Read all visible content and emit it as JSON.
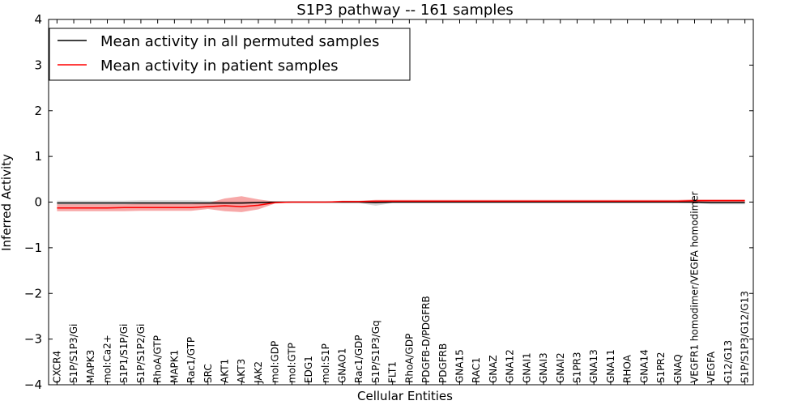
{
  "chart_data": {
    "type": "line",
    "title": "S1P3 pathway -- 161 samples",
    "xlabel": "Cellular Entities",
    "ylabel": "Inferred Activity",
    "ylim": [
      -4,
      4
    ],
    "yticks": [
      "−4",
      "−3",
      "−2",
      "−1",
      "0",
      "1",
      "2",
      "3",
      "4"
    ],
    "yticks_values": [
      -4,
      -3,
      -2,
      -1,
      0,
      1,
      2,
      3,
      4
    ],
    "legend_position": "top-left",
    "categories": [
      "CXCR4",
      "S1P/S1P3/Gi",
      "MAPK3",
      "mol:Ca2+",
      "S1P1/S1P/Gi",
      "S1P/S1P2/Gi",
      "RhoA/GTP",
      "MAPK1",
      "Rac1/GTP",
      "SRC",
      "AKT1",
      "AKT3",
      "JAK2",
      "mol:GDP",
      "mol:GTP",
      "EDG1",
      "mol:S1P",
      "GNAO1",
      "Rac1/GDP",
      "S1P/S1P3/Gq",
      "FLT1",
      "RhoA/GDP",
      "PDGFB-D/PDGFRB",
      "PDGFRB",
      "GNA15",
      "RAC1",
      "GNAZ",
      "GNA12",
      "GNAI1",
      "GNAI3",
      "GNAI2",
      "S1PR3",
      "GNA13",
      "GNA11",
      "RHOA",
      "GNA14",
      "S1PR2",
      "GNAQ",
      "VEGFR1 homodimer/VEGFA homodimer",
      "VEGFA",
      "G12/G13",
      "S1P/S1P3/G12/G13"
    ],
    "series": [
      {
        "name": "Mean activity in all permuted samples",
        "color": "#000000",
        "values": [
          -0.02,
          -0.02,
          -0.02,
          -0.02,
          -0.02,
          -0.02,
          -0.02,
          -0.02,
          -0.02,
          -0.02,
          -0.02,
          -0.02,
          -0.01,
          0,
          0,
          0,
          0,
          0,
          0,
          -0.01,
          0,
          0,
          0,
          0,
          0,
          0,
          0,
          0,
          0,
          0,
          0,
          0,
          0,
          0,
          0,
          0,
          0,
          0,
          0,
          -0.01,
          -0.01,
          -0.01
        ],
        "band_lower": [
          -0.06,
          -0.06,
          -0.06,
          -0.06,
          -0.06,
          -0.06,
          -0.06,
          -0.06,
          -0.06,
          -0.06,
          -0.05,
          -0.05,
          -0.03,
          -0.01,
          -0.01,
          -0.01,
          -0.01,
          -0.02,
          -0.02,
          -0.08,
          -0.02,
          -0.02,
          -0.02,
          -0.02,
          -0.02,
          -0.02,
          -0.02,
          -0.02,
          -0.02,
          -0.02,
          -0.02,
          -0.02,
          -0.02,
          -0.02,
          -0.02,
          -0.02,
          -0.02,
          -0.02,
          -0.03,
          -0.05,
          -0.05,
          -0.05
        ],
        "band_upper": [
          0.03,
          0.03,
          0.03,
          0.03,
          0.03,
          0.04,
          0.04,
          0.04,
          0.04,
          0.03,
          0.02,
          0.02,
          0.01,
          0.01,
          0.01,
          0.01,
          0.01,
          0.02,
          0.02,
          0.03,
          0.02,
          0.02,
          0.02,
          0.02,
          0.02,
          0.02,
          0.02,
          0.02,
          0.02,
          0.02,
          0.02,
          0.02,
          0.02,
          0.02,
          0.02,
          0.02,
          0.02,
          0.02,
          0.03,
          0.03,
          0.03,
          0.03
        ]
      },
      {
        "name": "Mean activity in patient samples",
        "color": "#ff0000",
        "values": [
          -0.13,
          -0.13,
          -0.13,
          -0.13,
          -0.12,
          -0.12,
          -0.12,
          -0.12,
          -0.12,
          -0.1,
          -0.08,
          -0.1,
          -0.07,
          -0.01,
          0,
          0,
          0,
          0.01,
          0.01,
          0.02,
          0.02,
          0.02,
          0.02,
          0.02,
          0.02,
          0.02,
          0.02,
          0.02,
          0.02,
          0.02,
          0.02,
          0.02,
          0.02,
          0.02,
          0.02,
          0.02,
          0.02,
          0.02,
          0.03,
          0.03,
          0.03,
          0.03
        ],
        "band_lower": [
          -0.2,
          -0.2,
          -0.2,
          -0.2,
          -0.2,
          -0.19,
          -0.19,
          -0.19,
          -0.19,
          -0.15,
          -0.2,
          -0.22,
          -0.16,
          -0.03,
          -0.01,
          -0.01,
          -0.01,
          -0.01,
          -0.01,
          0,
          0,
          0,
          0,
          0,
          0,
          0,
          0,
          0,
          0,
          0,
          0,
          0,
          0,
          0,
          0,
          0,
          0,
          0,
          0.01,
          0.01,
          0.01,
          0.01
        ],
        "band_upper": [
          -0.05,
          -0.05,
          -0.05,
          -0.05,
          -0.05,
          -0.04,
          -0.04,
          -0.04,
          -0.04,
          -0.02,
          0.08,
          0.13,
          0.06,
          0.01,
          0.01,
          0.01,
          0.01,
          0.03,
          0.03,
          0.05,
          0.05,
          0.05,
          0.05,
          0.05,
          0.05,
          0.05,
          0.05,
          0.05,
          0.05,
          0.05,
          0.05,
          0.05,
          0.05,
          0.05,
          0.05,
          0.05,
          0.05,
          0.05,
          0.06,
          0.06,
          0.06,
          0.06
        ]
      }
    ]
  }
}
